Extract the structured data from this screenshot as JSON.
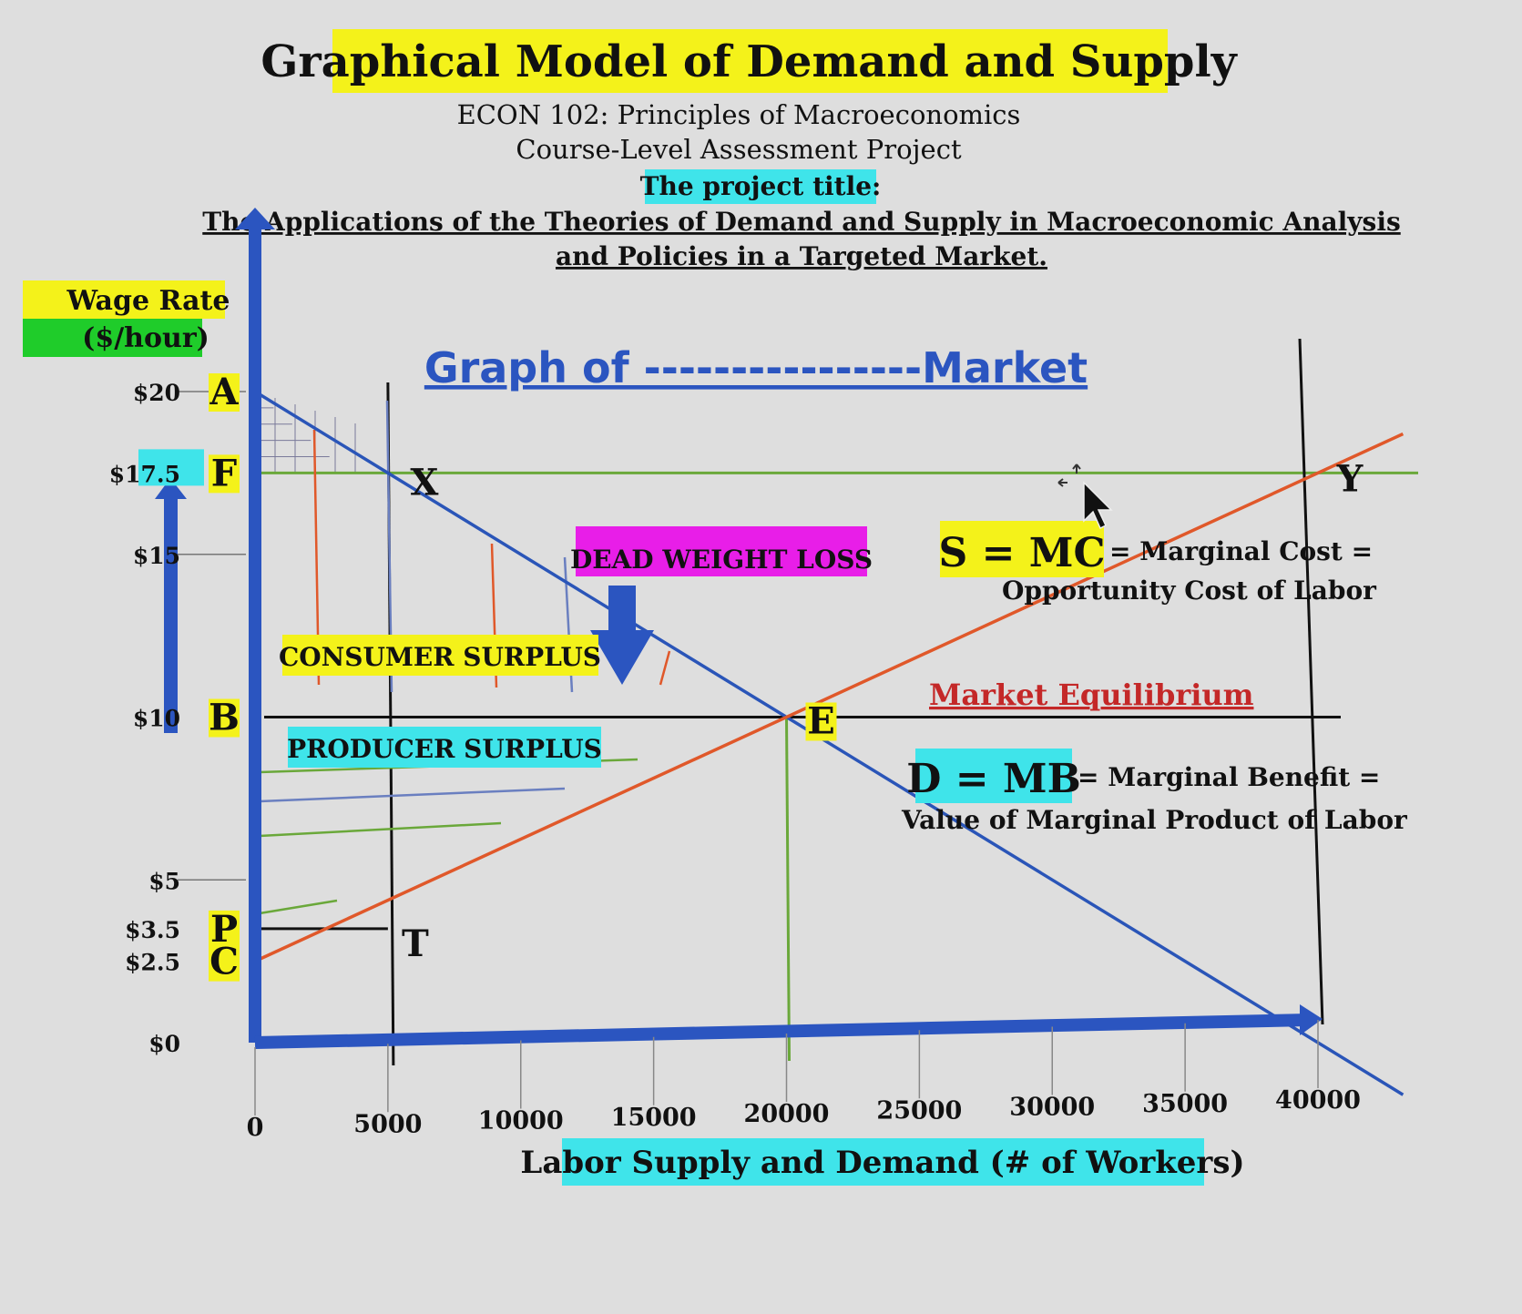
{
  "header": {
    "title": "Graphical Model of Demand and Supply",
    "course": "ECON 102: Principles of Macroeconomics",
    "project": "Course-Level Assessment Project",
    "project_title_label": "The project title:",
    "project_title_line1": "The Applications of the Theories of Demand and Supply in Macroeconomic Analysis",
    "project_title_line2": "and Policies in a Targeted Market."
  },
  "chart_data": {
    "type": "line",
    "title": "Graph of ----------------Market",
    "xlabel": "Labor Supply and Demand (# of Workers)",
    "ylabel_line1": "Wage Rate",
    "ylabel_line2": "($/hour)",
    "x_ticks": [
      0,
      5000,
      10000,
      15000,
      20000,
      25000,
      30000,
      35000,
      40000
    ],
    "x_tick_labels": [
      "0",
      "5000",
      "10000",
      "15000",
      "20000",
      "25000",
      "30000",
      "35000",
      "40000"
    ],
    "y_ticks": [
      0,
      2.5,
      3.5,
      5,
      10,
      15,
      17.5,
      20
    ],
    "y_tick_labels": [
      "$0",
      "$2.5",
      "$3.5",
      "$5",
      "$10",
      "$15",
      "$17.5",
      "$20"
    ],
    "xlim": [
      0,
      40000
    ],
    "ylim": [
      0,
      20
    ],
    "series": [
      {
        "name": "D = MB",
        "color": "#2a55b8",
        "points": [
          [
            0,
            20
          ],
          [
            5000,
            17.5
          ],
          [
            20000,
            10
          ],
          [
            40000,
            0
          ]
        ]
      },
      {
        "name": "S = MC",
        "color": "#e0582a",
        "points": [
          [
            0,
            2.5
          ],
          [
            5000,
            3.5
          ],
          [
            20000,
            10
          ],
          [
            40000,
            17.5
          ]
        ]
      }
    ],
    "guide_lines": {
      "price_floor_wage": 17.5,
      "equilibrium_wage": 10,
      "price_ceiling_wage": 3.5,
      "quantity_x": 5000,
      "equilibrium_quantity": 20000,
      "upper_quantity": 40000
    },
    "point_labels": [
      {
        "letter": "A",
        "x": 0,
        "y": 20
      },
      {
        "letter": "F",
        "x": 0,
        "y": 17.5
      },
      {
        "letter": "B",
        "x": 0,
        "y": 10
      },
      {
        "letter": "P",
        "x": 0,
        "y": 3.5
      },
      {
        "letter": "C",
        "x": 0,
        "y": 2.5
      },
      {
        "letter": "X",
        "x": 5000,
        "y": 17.5
      },
      {
        "letter": "T",
        "x": 5000,
        "y": 3.5
      },
      {
        "letter": "E",
        "x": 20000,
        "y": 10
      },
      {
        "letter": "Y",
        "x": 40000,
        "y": 17.5
      }
    ],
    "annotations": {
      "dead_weight_loss": "DEAD WEIGHT LOSS",
      "consumer_surplus": "CONSUMER SURPLUS",
      "producer_surplus": "PRODUCER SURPLUS",
      "market_equilibrium": "Market Equilibrium",
      "supply_label": "S = MC",
      "supply_desc1": "= Marginal Cost =",
      "supply_desc2": "Opportunity Cost of Labor",
      "demand_label": "D = MB",
      "demand_desc1": "= Marginal Benefit =",
      "demand_desc2": "Value of Marginal Product of Labor"
    }
  },
  "colors": {
    "axis": "#2b55c0",
    "demand": "#2a55b8",
    "supply": "#e0582a",
    "guide_green": "#6aa83a",
    "highlight_yellow": "#f4f21a",
    "highlight_cyan": "#3fe4ea",
    "highlight_green": "#1fcc2a",
    "highlight_magenta": "#e81ee8",
    "equilibrium_red": "#c42828",
    "title_blue": "#2b55c0"
  }
}
